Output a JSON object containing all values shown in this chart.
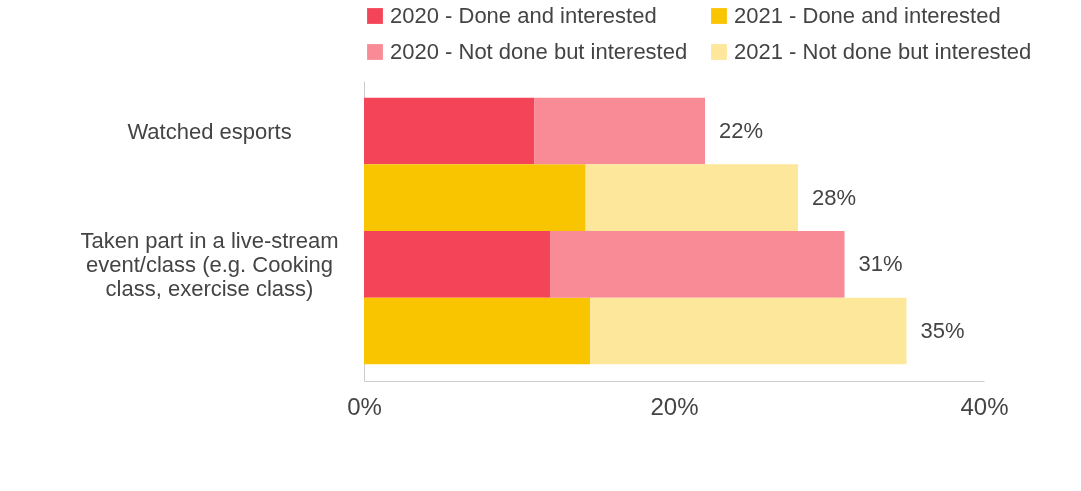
{
  "chart_data": {
    "type": "bar",
    "orientation": "horizontal",
    "stacked": true,
    "categories": [
      "Watched esports",
      null,
      "Taken part in a live-stream event/class (e.g. Cooking class, exercise class)",
      null
    ],
    "series": [
      {
        "name": "2020 - Done and interested",
        "color": "#f44558",
        "values": [
          11,
          null,
          12,
          null
        ]
      },
      {
        "name": "2021 - Done and interested",
        "color": "#f9c500",
        "values": [
          null,
          14.3,
          null,
          14.6
        ]
      },
      {
        "name": "2020 - Not done but interested",
        "color": "#f98b96",
        "values": [
          11,
          null,
          19,
          null
        ]
      },
      {
        "name": "2021 - Not done but interested",
        "color": "#fde79a",
        "values": [
          null,
          13.7,
          null,
          20.4
        ]
      }
    ],
    "totals": [
      "22%",
      "28%",
      "31%",
      "35%"
    ],
    "xlim": [
      0,
      40
    ],
    "xticks": [
      {
        "value": 0,
        "label": "0%"
      },
      {
        "value": 20,
        "label": "20%"
      },
      {
        "value": 40,
        "label": "40%"
      }
    ],
    "grid": false,
    "legend": "top"
  }
}
